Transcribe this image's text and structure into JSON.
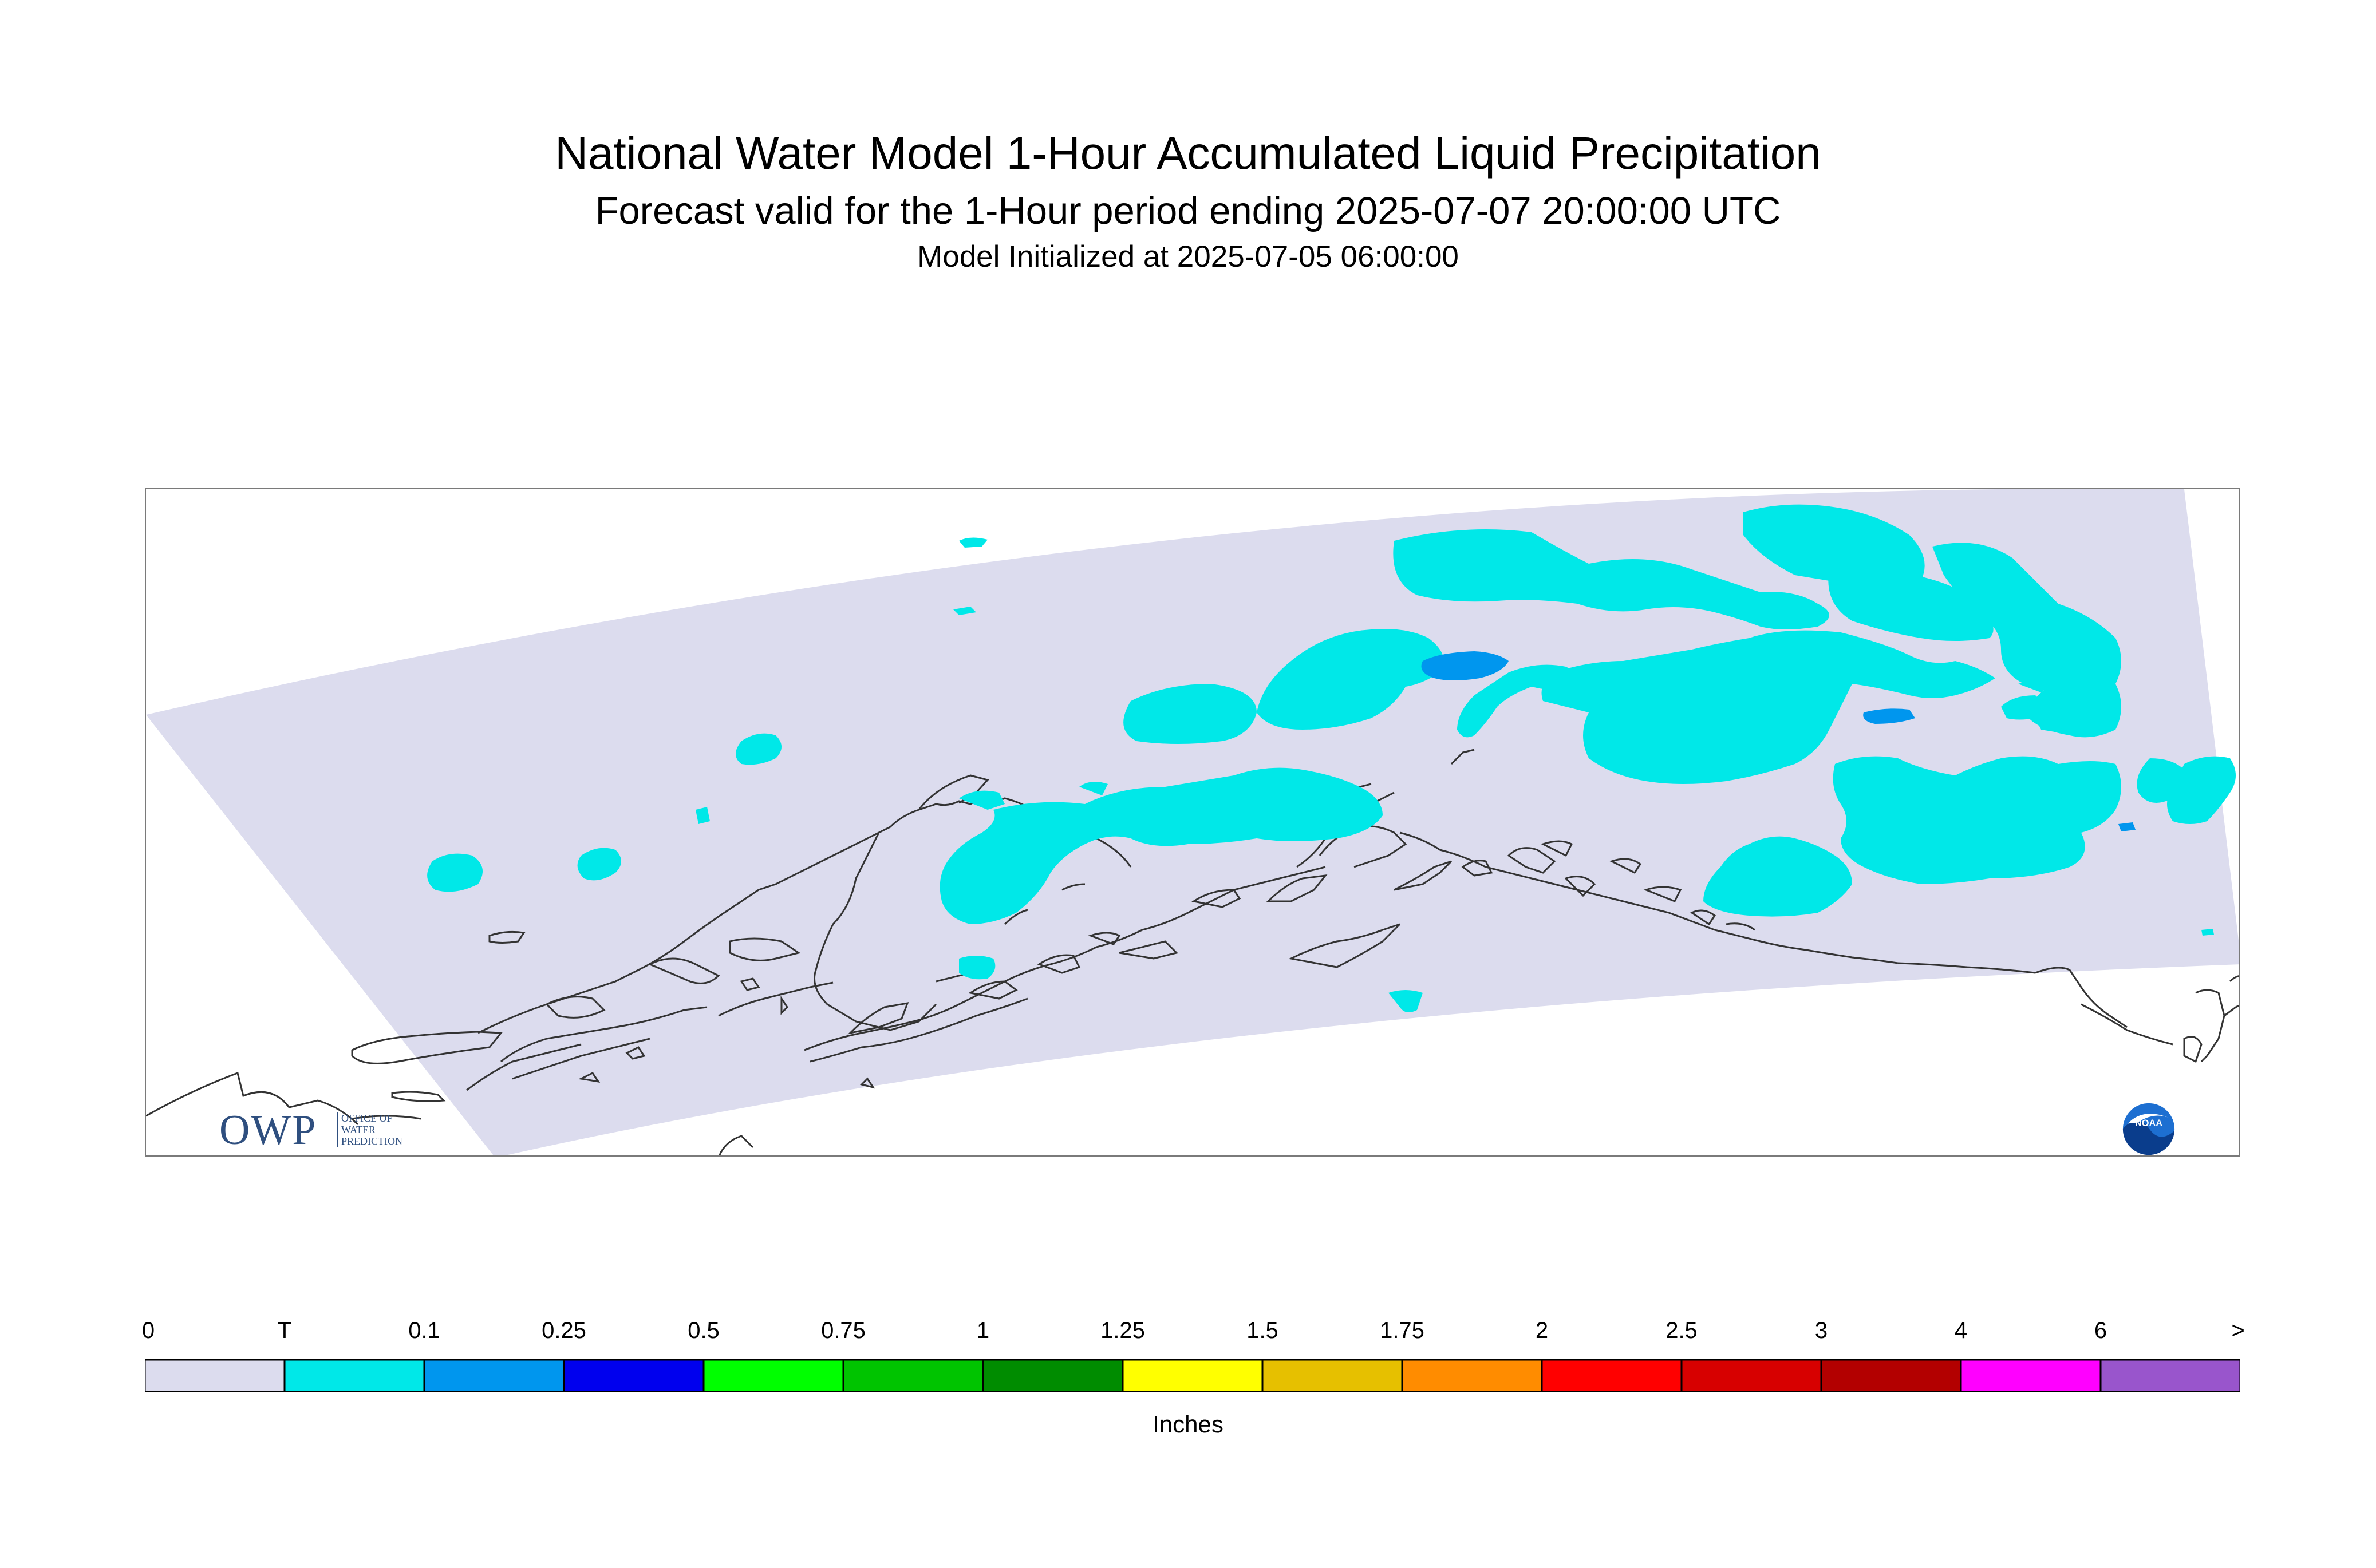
{
  "header": {
    "title": "National Water Model 1-Hour Accumulated Liquid Precipitation",
    "subtitle": "Forecast valid for the 1-Hour period ending 2025-07-07 20:00:00 UTC",
    "init_line": "Model Initialized at 2025-07-05 06:00:00"
  },
  "map": {
    "region": "Alaska",
    "domain_fill_color": "#dcdcee",
    "coastline_color": "#333333",
    "precip_color_trace": "#00e8e8",
    "precip_color_light": "#0096ee"
  },
  "logos": {
    "owp_main": "OWP",
    "owp_sub_lines": [
      "OFFICE OF",
      "WATER",
      "PREDICTION"
    ],
    "noaa_text": "NOAA"
  },
  "legend": {
    "units": "Inches",
    "tick_labels": [
      "0",
      "T",
      "0.1",
      "0.25",
      "0.5",
      "0.75",
      "1",
      "1.25",
      "1.5",
      "1.75",
      "2",
      "2.5",
      "3",
      "4",
      "6",
      ">"
    ],
    "bins": [
      {
        "color": "#dcdcee"
      },
      {
        "color": "#00e8e8"
      },
      {
        "color": "#0096ee"
      },
      {
        "color": "#0000ee"
      },
      {
        "color": "#00ff00"
      },
      {
        "color": "#00c400"
      },
      {
        "color": "#008c00"
      },
      {
        "color": "#ffff00"
      },
      {
        "color": "#e6c000"
      },
      {
        "color": "#ff8c00"
      },
      {
        "color": "#ff0000"
      },
      {
        "color": "#d70000"
      },
      {
        "color": "#b30000"
      },
      {
        "color": "#ff00ff"
      },
      {
        "color": "#9955cc"
      }
    ]
  }
}
